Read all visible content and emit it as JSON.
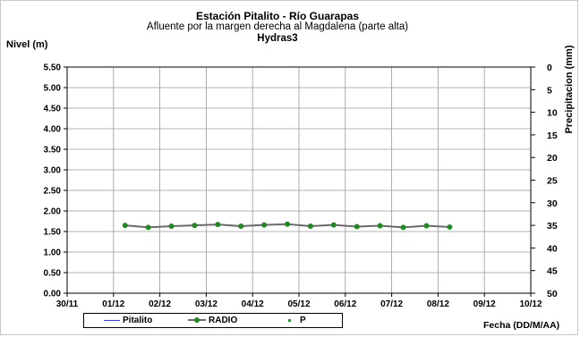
{
  "chart_data": {
    "type": "line",
    "title": "Estación Pitalito  - Río Guarapas",
    "subtitle": "Afluente por la margen derecha al Magdalena (parte alta)",
    "subtitle2": "Hydras3",
    "ylabel": "Nivel (m)",
    "y2label": "Precipitacion (mm)",
    "xlabel": "Fecha (DD/M/AA)",
    "ylim": [
      0,
      5.5
    ],
    "yticks": [
      "0.00",
      "0.50",
      "1.00",
      "1.50",
      "2.00",
      "2.50",
      "3.00",
      "3.50",
      "4.00",
      "4.50",
      "5.00",
      "5.50"
    ],
    "y2lim": [
      0,
      50
    ],
    "y2ticks": [
      "0",
      "5",
      "10",
      "15",
      "20",
      "25",
      "30",
      "35",
      "40",
      "45",
      "50"
    ],
    "y2_inverted": true,
    "xlim": [
      "30/11",
      "10/12"
    ],
    "xticks": [
      "30/11",
      "01/12",
      "02/12",
      "03/12",
      "04/12",
      "05/12",
      "06/12",
      "07/12",
      "08/12",
      "09/12",
      "10/12"
    ],
    "grid": true,
    "legend_placement": "bottom",
    "series": [
      {
        "name": "Pitalito",
        "color": "#3a3aff",
        "style": "line",
        "x": [],
        "y": []
      },
      {
        "name": "RADIO",
        "color": "#6a6a6a",
        "marker_color": "#1f8a1f",
        "style": "line-marker",
        "x": [
          "01/12 06:00",
          "01/12 18:00",
          "02/12 06:00",
          "02/12 18:00",
          "03/12 06:00",
          "03/12 18:00",
          "04/12 06:00",
          "04/12 18:00",
          "05/12 06:00",
          "05/12 18:00",
          "06/12 06:00",
          "06/12 18:00",
          "07/12 06:00",
          "07/12 18:00",
          "08/12 06:00"
        ],
        "y": [
          1.65,
          1.6,
          1.63,
          1.65,
          1.67,
          1.63,
          1.66,
          1.68,
          1.63,
          1.66,
          1.62,
          1.64,
          1.6,
          1.64,
          1.61
        ]
      },
      {
        "name": "P",
        "color": "#1fa01f",
        "style": "points",
        "x": [],
        "y": []
      }
    ]
  }
}
